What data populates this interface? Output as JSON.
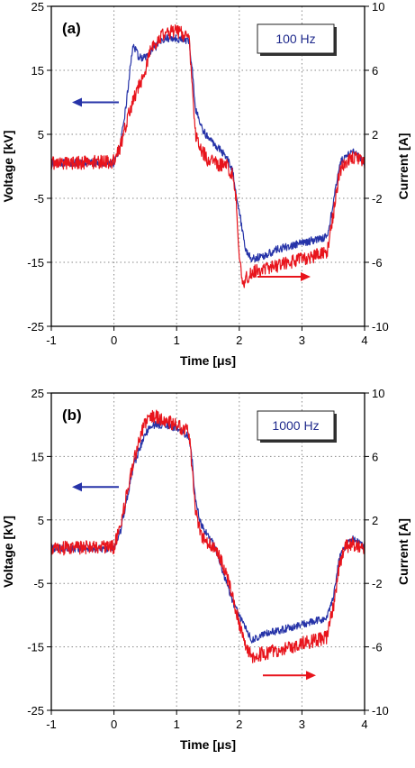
{
  "colors": {
    "voltage": "#2633a8",
    "current": "#e8141c",
    "grid": "#888888",
    "legend_text": "#1f2a8c"
  },
  "chart_data": [
    {
      "type": "line",
      "panel_label": "(a)",
      "legend_box": "100 Hz",
      "xlabel": "Time [μs]",
      "ylabel": "Voltage [kV]",
      "y2label": "Current [A]",
      "xlim": [
        -1,
        4
      ],
      "ylim": [
        -25,
        25
      ],
      "y2lim": [
        -10,
        10
      ],
      "xticks": [
        "-1",
        "0",
        "1",
        "2",
        "3",
        "4"
      ],
      "yticks": [
        "25",
        "15",
        "5",
        "-5",
        "-15",
        "-25"
      ],
      "y2ticks": [
        "10",
        "6",
        "2",
        "-2",
        "-6",
        "-10"
      ],
      "grid": true,
      "series": [
        {
          "key": "voltage",
          "axis": "left",
          "x": [
            -1,
            0,
            0.1,
            0.2,
            0.3,
            0.4,
            0.5,
            0.6,
            0.8,
            1.0,
            1.2,
            1.25,
            1.3,
            1.4,
            1.5,
            1.6,
            1.7,
            1.8,
            1.9,
            1.95,
            2.0,
            2.05,
            2.1,
            2.2,
            2.4,
            2.6,
            2.8,
            3.0,
            3.2,
            3.4,
            3.5,
            3.6,
            3.7,
            3.8,
            3.9,
            4.0
          ],
          "y": [
            0.5,
            0.5,
            3,
            10,
            19,
            17,
            17,
            18,
            20,
            20,
            19.5,
            15,
            9,
            6,
            4.5,
            3.5,
            2.5,
            1.5,
            -1,
            -4,
            -7,
            -10,
            -13,
            -14.5,
            -14,
            -13,
            -12.5,
            -12,
            -11.5,
            -11,
            -6,
            0.5,
            1.5,
            2.5,
            1.5,
            0.5
          ]
        },
        {
          "key": "current",
          "axis": "right",
          "x": [
            -1,
            0,
            0.1,
            0.2,
            0.3,
            0.4,
            0.5,
            0.6,
            0.8,
            1.0,
            1.2,
            1.25,
            1.3,
            1.4,
            1.5,
            1.6,
            1.7,
            1.8,
            1.9,
            1.95,
            2.0,
            2.05,
            2.1,
            2.2,
            2.4,
            2.6,
            2.8,
            3.0,
            3.2,
            3.4,
            3.5,
            3.6,
            3.7,
            3.8,
            3.9,
            4.0
          ],
          "y": [
            0.2,
            0.3,
            1.2,
            2.8,
            4.0,
            5.0,
            6.0,
            7.5,
            8.3,
            8.5,
            8.0,
            5.0,
            2.0,
            1.0,
            0.4,
            0.2,
            0.1,
            0.0,
            -0.6,
            -2.0,
            -5.5,
            -7.5,
            -7.0,
            -6.6,
            -6.4,
            -6.2,
            -6.0,
            -5.8,
            -5.6,
            -5.4,
            -3.0,
            -0.3,
            0.3,
            0.5,
            0.4,
            0.2
          ]
        }
      ]
    },
    {
      "type": "line",
      "panel_label": "(b)",
      "legend_box": "1000 Hz",
      "xlabel": "Time [μs]",
      "ylabel": "Voltage [kV]",
      "y2label": "Current [A]",
      "xlim": [
        -1,
        4
      ],
      "ylim": [
        -25,
        25
      ],
      "y2lim": [
        -10,
        10
      ],
      "xticks": [
        "-1",
        "0",
        "1",
        "2",
        "3",
        "4"
      ],
      "yticks": [
        "25",
        "15",
        "5",
        "-5",
        "-15",
        "-25"
      ],
      "y2ticks": [
        "10",
        "6",
        "2",
        "-2",
        "-6",
        "-10"
      ],
      "grid": true,
      "series": [
        {
          "key": "voltage",
          "axis": "left",
          "x": [
            -1,
            0,
            0.1,
            0.2,
            0.3,
            0.4,
            0.5,
            0.6,
            0.8,
            1.0,
            1.2,
            1.25,
            1.3,
            1.4,
            1.5,
            1.6,
            1.7,
            1.8,
            1.9,
            2.0,
            2.1,
            2.2,
            2.4,
            2.6,
            2.8,
            3.0,
            3.2,
            3.4,
            3.5,
            3.6,
            3.7,
            3.8,
            3.9,
            4.0
          ],
          "y": [
            0.5,
            0.5,
            3,
            8,
            13,
            16,
            18.5,
            20,
            20,
            19.5,
            18,
            14,
            8,
            4,
            2.5,
            1,
            -2,
            -5,
            -8,
            -10,
            -12,
            -14,
            -13,
            -12.5,
            -12,
            -11.5,
            -11,
            -10.5,
            -7,
            -1,
            1,
            2,
            1.5,
            0.5
          ]
        },
        {
          "key": "current",
          "axis": "right",
          "x": [
            -1,
            0,
            0.1,
            0.2,
            0.3,
            0.4,
            0.5,
            0.6,
            0.8,
            1.0,
            1.2,
            1.25,
            1.3,
            1.4,
            1.5,
            1.6,
            1.7,
            1.8,
            1.9,
            2.0,
            2.1,
            2.2,
            2.4,
            2.6,
            2.8,
            3.0,
            3.2,
            3.4,
            3.5,
            3.6,
            3.7,
            3.8,
            3.9,
            4.0
          ],
          "y": [
            0.2,
            0.3,
            1.5,
            3.5,
            5.5,
            7.0,
            8.2,
            8.6,
            8.3,
            8.0,
            7.5,
            5.0,
            2.5,
            1.0,
            0.6,
            0.2,
            -0.5,
            -1.5,
            -3.0,
            -4.5,
            -5.8,
            -6.6,
            -6.4,
            -6.2,
            -6.0,
            -5.8,
            -5.6,
            -5.4,
            -3.5,
            -0.8,
            0.3,
            0.5,
            0.4,
            0.2
          ]
        }
      ]
    }
  ]
}
